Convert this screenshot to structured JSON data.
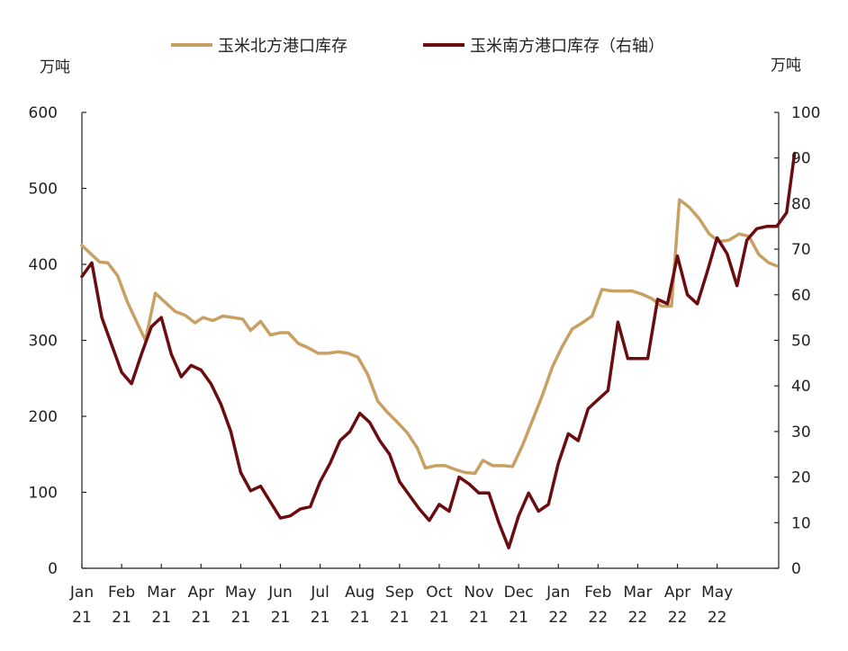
{
  "chart_data": {
    "type": "line",
    "left_unit": "万吨",
    "right_unit": "万吨",
    "y_left": {
      "min": 0,
      "max": 600,
      "ticks": [
        0,
        100,
        200,
        300,
        400,
        500,
        600
      ]
    },
    "y_right": {
      "min": 0,
      "max": 100,
      "ticks": [
        0,
        10,
        20,
        30,
        40,
        50,
        60,
        70,
        80,
        90,
        100
      ]
    },
    "x_ticks": [
      {
        "month": "Jan",
        "year": "21"
      },
      {
        "month": "Feb",
        "year": "21"
      },
      {
        "month": "Mar",
        "year": "21"
      },
      {
        "month": "Apr",
        "year": "21"
      },
      {
        "month": "May",
        "year": "21"
      },
      {
        "month": "Jun",
        "year": "21"
      },
      {
        "month": "Jul",
        "year": "21"
      },
      {
        "month": "Aug",
        "year": "21"
      },
      {
        "month": "Sep",
        "year": "21"
      },
      {
        "month": "Oct",
        "year": "21"
      },
      {
        "month": "Nov",
        "year": "21"
      },
      {
        "month": "Dec",
        "year": "21"
      },
      {
        "month": "Jan",
        "year": "22"
      },
      {
        "month": "Feb",
        "year": "22"
      },
      {
        "month": "Mar",
        "year": "22"
      },
      {
        "month": "Apr",
        "year": "22"
      },
      {
        "month": "May",
        "year": "22"
      }
    ],
    "series": [
      {
        "name": "玉米北方港口库存",
        "axis": "left",
        "color": "#c8a063",
        "points": [
          [
            0,
            425
          ],
          [
            0.2,
            415
          ],
          [
            0.45,
            403
          ],
          [
            0.65,
            402
          ],
          [
            0.9,
            385
          ],
          [
            1.15,
            350
          ],
          [
            1.4,
            322
          ],
          [
            1.6,
            300
          ],
          [
            1.85,
            362
          ],
          [
            2.1,
            350
          ],
          [
            2.35,
            338
          ],
          [
            2.6,
            333
          ],
          [
            2.85,
            323
          ],
          [
            3.05,
            330
          ],
          [
            3.3,
            326
          ],
          [
            3.55,
            332
          ],
          [
            3.8,
            330
          ],
          [
            4.05,
            328
          ],
          [
            4.25,
            313
          ],
          [
            4.5,
            325
          ],
          [
            4.75,
            307
          ],
          [
            5.0,
            310
          ],
          [
            5.2,
            310
          ],
          [
            5.45,
            296
          ],
          [
            5.7,
            290
          ],
          [
            5.95,
            283
          ],
          [
            6.2,
            283
          ],
          [
            6.45,
            285
          ],
          [
            6.7,
            283
          ],
          [
            6.95,
            278
          ],
          [
            7.2,
            255
          ],
          [
            7.45,
            220
          ],
          [
            7.7,
            205
          ],
          [
            7.95,
            192
          ],
          [
            8.2,
            178
          ],
          [
            8.45,
            158
          ],
          [
            8.65,
            132
          ],
          [
            8.9,
            135
          ],
          [
            9.15,
            135
          ],
          [
            9.4,
            130
          ],
          [
            9.65,
            126
          ],
          [
            9.9,
            125
          ],
          [
            10.1,
            142
          ],
          [
            10.35,
            135
          ],
          [
            10.6,
            135
          ],
          [
            10.85,
            134
          ],
          [
            11.1,
            162
          ],
          [
            11.35,
            195
          ],
          [
            11.6,
            228
          ],
          [
            11.85,
            265
          ],
          [
            12.1,
            292
          ],
          [
            12.35,
            315
          ],
          [
            12.6,
            323
          ],
          [
            12.85,
            332
          ],
          [
            13.1,
            367
          ],
          [
            13.35,
            365
          ],
          [
            13.6,
            365
          ],
          [
            13.85,
            365
          ],
          [
            14.1,
            361
          ],
          [
            14.35,
            355
          ],
          [
            14.6,
            345
          ],
          [
            14.85,
            345
          ],
          [
            15.05,
            485
          ],
          [
            15.3,
            475
          ],
          [
            15.55,
            460
          ],
          [
            15.8,
            440
          ],
          [
            16.05,
            430
          ],
          [
            16.3,
            432
          ],
          [
            16.55,
            440
          ],
          [
            16.8,
            437
          ],
          [
            17.05,
            413
          ],
          [
            17.3,
            402
          ],
          [
            17.5,
            398
          ]
        ]
      },
      {
        "name": "玉米南方港口库存（右轴）",
        "axis": "right",
        "color": "#6b0d10",
        "points": [
          [
            0,
            64
          ],
          [
            0.25,
            67
          ],
          [
            0.5,
            55
          ],
          [
            0.75,
            49
          ],
          [
            1.0,
            43
          ],
          [
            1.25,
            40.5
          ],
          [
            1.5,
            47
          ],
          [
            1.75,
            53
          ],
          [
            2.0,
            55
          ],
          [
            2.25,
            47
          ],
          [
            2.5,
            42
          ],
          [
            2.75,
            44.5
          ],
          [
            3.0,
            43.5
          ],
          [
            3.25,
            40.5
          ],
          [
            3.5,
            36
          ],
          [
            3.75,
            30
          ],
          [
            4.0,
            21
          ],
          [
            4.25,
            17
          ],
          [
            4.5,
            18
          ],
          [
            4.75,
            14.5
          ],
          [
            5.0,
            11
          ],
          [
            5.25,
            11.5
          ],
          [
            5.5,
            13
          ],
          [
            5.75,
            13.5
          ],
          [
            6.0,
            19
          ],
          [
            6.25,
            23
          ],
          [
            6.5,
            28
          ],
          [
            6.75,
            30
          ],
          [
            7.0,
            34
          ],
          [
            7.25,
            32
          ],
          [
            7.5,
            28
          ],
          [
            7.75,
            25
          ],
          [
            8.0,
            19
          ],
          [
            8.25,
            16
          ],
          [
            8.5,
            13
          ],
          [
            8.75,
            10.5
          ],
          [
            9.0,
            14
          ],
          [
            9.25,
            12.5
          ],
          [
            9.5,
            20
          ],
          [
            9.75,
            18.5
          ],
          [
            10.0,
            16.5
          ],
          [
            10.25,
            16.5
          ],
          [
            10.5,
            10
          ],
          [
            10.75,
            4.5
          ],
          [
            11.0,
            11.5
          ],
          [
            11.25,
            16.5
          ],
          [
            11.5,
            12.5
          ],
          [
            11.75,
            14
          ],
          [
            12.0,
            23
          ],
          [
            12.25,
            29.5
          ],
          [
            12.5,
            28
          ],
          [
            12.75,
            35
          ],
          [
            13.0,
            37
          ],
          [
            13.25,
            39
          ],
          [
            13.5,
            54
          ],
          [
            13.75,
            46
          ],
          [
            14.0,
            46
          ],
          [
            14.25,
            46
          ],
          [
            14.5,
            59
          ],
          [
            14.75,
            58
          ],
          [
            15.0,
            68.5
          ],
          [
            15.25,
            60
          ],
          [
            15.5,
            58
          ],
          [
            15.75,
            65
          ],
          [
            16.0,
            72.5
          ],
          [
            16.25,
            69
          ],
          [
            16.5,
            62
          ],
          [
            16.75,
            72
          ],
          [
            17.0,
            74.5
          ],
          [
            17.25,
            75
          ],
          [
            17.5,
            75
          ],
          [
            17.75,
            78
          ],
          [
            17.95,
            91
          ]
        ]
      }
    ]
  }
}
